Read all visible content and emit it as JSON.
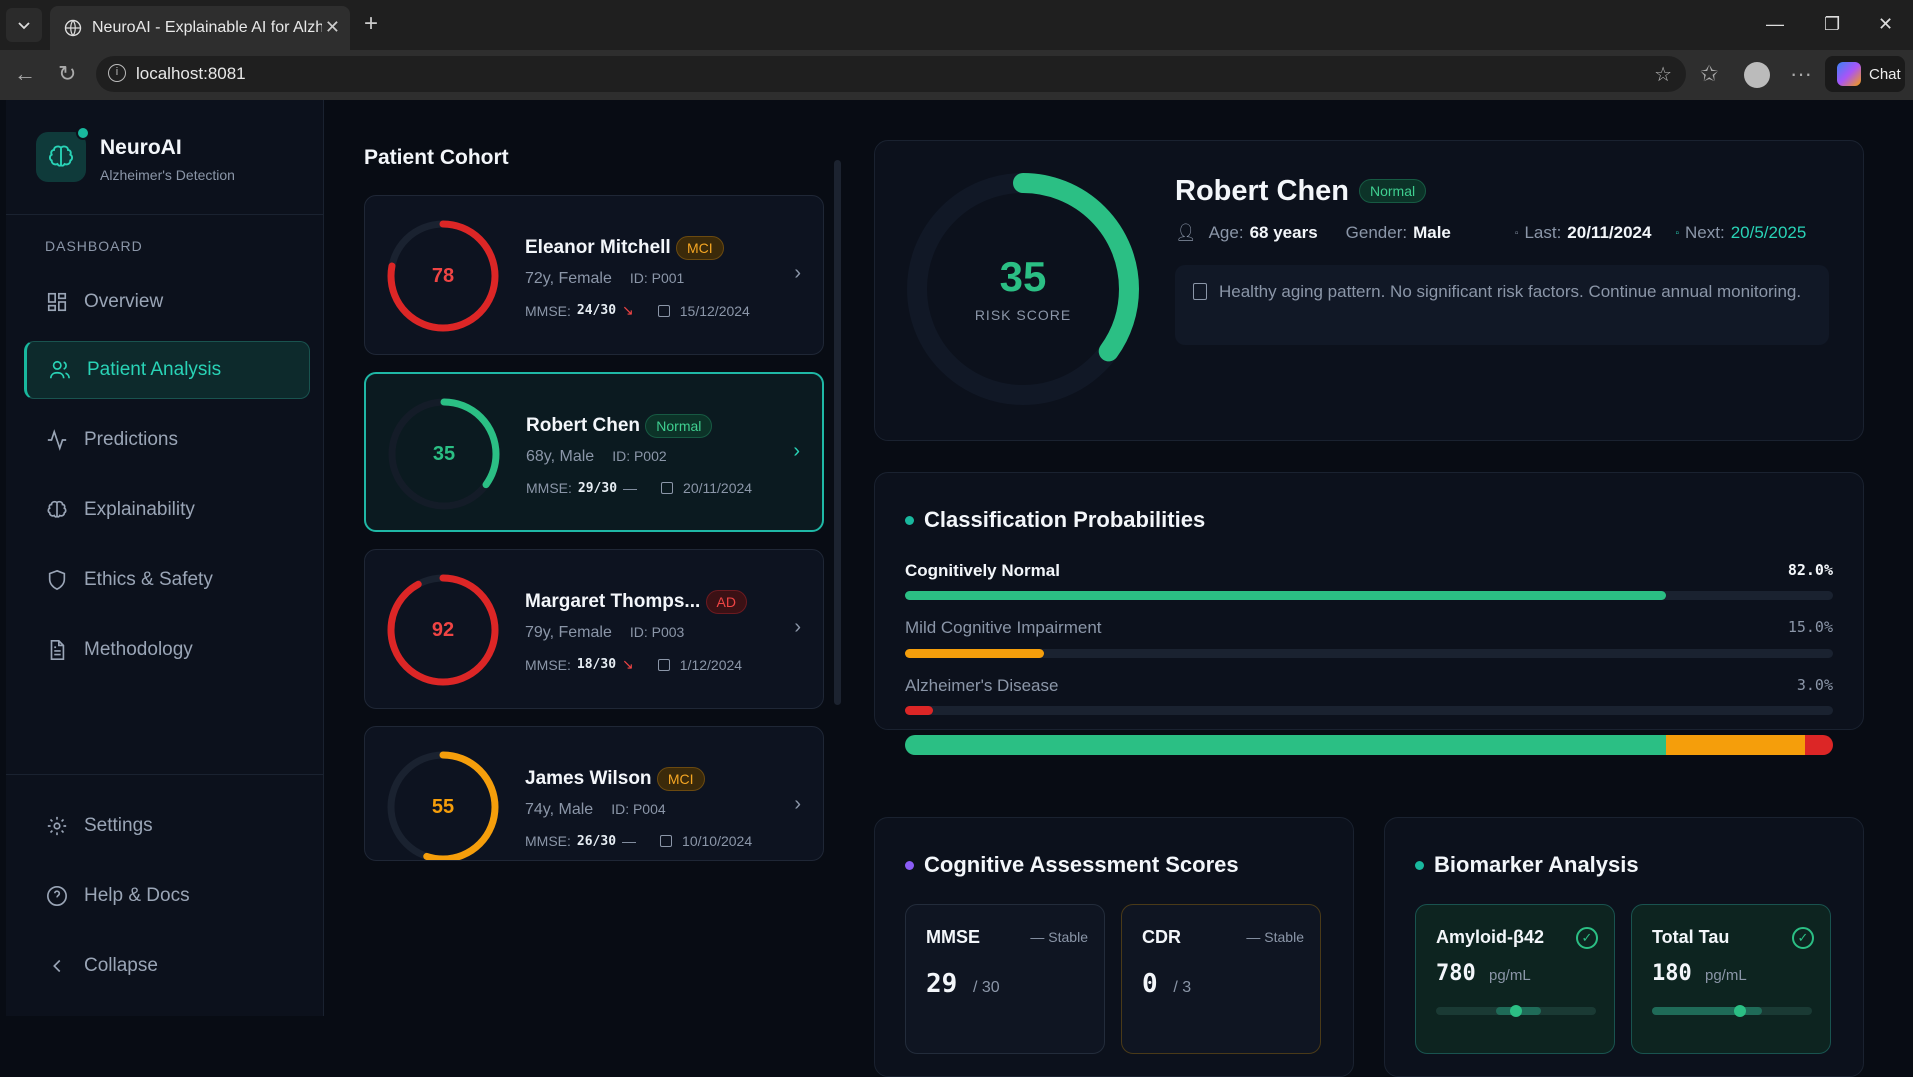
{
  "browser": {
    "tab_title": "NeuroAI - Explainable AI for Alzheimer's",
    "url": "localhost:8081",
    "chat_label": "Chat"
  },
  "sidebar": {
    "brand": "NeuroAI",
    "brand_sub": "Alzheimer's Detection",
    "section": "DASHBOARD",
    "items": [
      {
        "label": "Overview",
        "icon": "grid-icon"
      },
      {
        "label": "Patient Analysis",
        "icon": "users-icon",
        "active": true
      },
      {
        "label": "Predictions",
        "icon": "activity-icon"
      },
      {
        "label": "Explainability",
        "icon": "brain-icon"
      },
      {
        "label": "Ethics & Safety",
        "icon": "shield-icon"
      },
      {
        "label": "Methodology",
        "icon": "document-icon"
      }
    ],
    "bottom": [
      {
        "label": "Settings",
        "icon": "gear-icon"
      },
      {
        "label": "Help & Docs",
        "icon": "help-icon"
      },
      {
        "label": "Collapse",
        "icon": "chevron-left-icon"
      }
    ]
  },
  "cohort": {
    "title": "Patient Cohort",
    "patients": [
      {
        "name": "Eleanor Mitchell",
        "badge": "MCI",
        "demo": "72y, Female",
        "id": "ID: P001",
        "mmse_label": "MMSE:",
        "mmse": "24/30",
        "trend": "↘",
        "date": "15/12/2024",
        "score": "78",
        "risk": 78,
        "color": "#dc2626"
      },
      {
        "name": "Robert Chen",
        "badge": "Normal",
        "demo": "68y, Male",
        "id": "ID: P002",
        "mmse_label": "MMSE:",
        "mmse": "29/30",
        "trend": "—",
        "date": "20/11/2024",
        "score": "35",
        "risk": 35,
        "color": "#2bbf84"
      },
      {
        "name": "Margaret Thomps...",
        "badge": "AD",
        "demo": "79y, Female",
        "id": "ID: P003",
        "mmse_label": "MMSE:",
        "mmse": "18/30",
        "trend": "↘",
        "date": "1/12/2024",
        "score": "92",
        "risk": 92,
        "color": "#dc2626"
      },
      {
        "name": "James Wilson",
        "badge": "MCI",
        "demo": "74y, Male",
        "id": "ID: P004",
        "mmse_label": "MMSE:",
        "mmse": "26/30",
        "trend": "—",
        "date": "10/10/2024",
        "score": "55",
        "risk": 55,
        "color": "#f59e0b"
      }
    ]
  },
  "detail": {
    "risk_score": "35",
    "risk_value": 35,
    "risk_label": "RISK SCORE",
    "name": "Robert Chen",
    "badge": "Normal",
    "age_label": "Age:",
    "age": "68 years",
    "gender_label": "Gender:",
    "gender": "Male",
    "last_label": "Last:",
    "last": "20/11/2024",
    "next_label": "Next:",
    "next": "20/5/2025",
    "note": "Healthy aging pattern. No significant risk factors. Continue annual monitoring."
  },
  "classification": {
    "title": "Classification Probabilities",
    "items": [
      {
        "label": "Cognitively Normal",
        "pct": "82.0%",
        "value": 82.0,
        "color": "#2bbf84"
      },
      {
        "label": "Mild Cognitive Impairment",
        "pct": "15.0%",
        "value": 15.0,
        "color": "#f59e0b"
      },
      {
        "label": "Alzheimer's Disease",
        "pct": "3.0%",
        "value": 3.0,
        "color": "#dc2626"
      }
    ]
  },
  "cognitive": {
    "title": "Cognitive Assessment Scores",
    "scores": [
      {
        "name": "MMSE",
        "status": "Stable",
        "value": "29",
        "max": "/ 30"
      },
      {
        "name": "CDR",
        "status": "Stable",
        "value": "0",
        "max": "/ 3"
      }
    ]
  },
  "biomarker": {
    "title": "Biomarker Analysis",
    "items": [
      {
        "name": "Amyloid-β42",
        "value": "780",
        "unit": "pg/mL",
        "level": 0.5
      },
      {
        "name": "Total Tau",
        "value": "180",
        "unit": "pg/mL",
        "level": 0.55
      }
    ]
  }
}
